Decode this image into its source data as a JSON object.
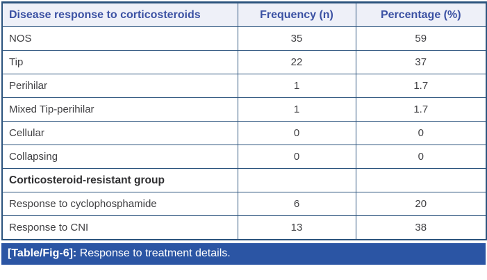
{
  "table": {
    "headers": [
      "Disease response to corticosteroids",
      "Frequency (n)",
      "Percentage (%)"
    ],
    "rows": [
      {
        "label": "NOS",
        "frequency": "35",
        "percentage": "59"
      },
      {
        "label": "Tip",
        "frequency": "22",
        "percentage": "37"
      },
      {
        "label": "Perihilar",
        "frequency": "1",
        "percentage": "1.7"
      },
      {
        "label": "Mixed Tip-perihilar",
        "frequency": "1",
        "percentage": "1.7"
      },
      {
        "label": "Cellular",
        "frequency": "0",
        "percentage": "0"
      },
      {
        "label": "Collapsing",
        "frequency": "0",
        "percentage": "0"
      },
      {
        "label": "Corticosteroid-resistant group",
        "frequency": "",
        "percentage": ""
      },
      {
        "label": "Response to cyclophosphamide",
        "frequency": "6",
        "percentage": "20"
      },
      {
        "label": "Response to CNI",
        "frequency": "13",
        "percentage": "38"
      }
    ]
  },
  "caption": {
    "label": "[Table/Fig-6]:",
    "text": " Response to treatment details."
  },
  "colors": {
    "border": "#2b537d",
    "header_bg": "#eef0f8",
    "header_text": "#3b51a3",
    "caption_bg": "#2b55a4",
    "caption_text": "#ffffff",
    "body_text": "#3f3f42"
  }
}
